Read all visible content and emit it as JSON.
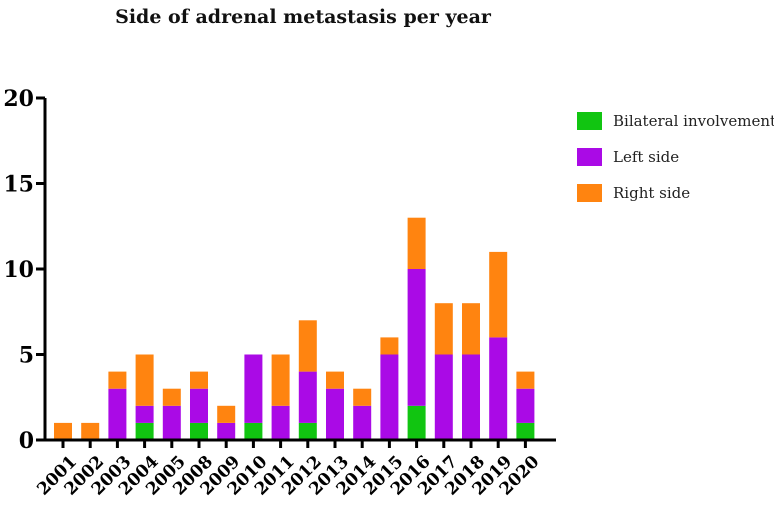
{
  "chart_data": {
    "type": "bar",
    "stacked": true,
    "title": "Side of adrenal metastasis per year",
    "xlabel": "",
    "ylabel": "",
    "ylim": [
      0,
      20
    ],
    "yticks": [
      "0",
      "5",
      "10",
      "15",
      "20"
    ],
    "categories": [
      "2001",
      "2002",
      "2003",
      "2004",
      "2005",
      "2008",
      "2009",
      "2010",
      "2011",
      "2012",
      "2013",
      "2014",
      "2015",
      "2016",
      "2017",
      "2018",
      "2019",
      "2020"
    ],
    "series": [
      {
        "name": "Bilateral involvement",
        "color": "#11c511",
        "values": [
          0,
          0,
          0,
          1,
          0,
          1,
          0,
          1,
          0,
          1,
          0,
          0,
          0,
          2,
          0,
          0,
          0,
          1
        ]
      },
      {
        "name": "Left side",
        "color": "#aa0ae6",
        "values": [
          0,
          0,
          3,
          1,
          2,
          2,
          1,
          4,
          2,
          3,
          3,
          2,
          5,
          8,
          5,
          5,
          6,
          2
        ]
      },
      {
        "name": "Right side",
        "color": "#ff8410",
        "values": [
          1,
          1,
          1,
          3,
          1,
          1,
          1,
          0,
          3,
          3,
          1,
          1,
          1,
          3,
          3,
          3,
          5,
          1
        ]
      }
    ],
    "legend_position": "right"
  }
}
